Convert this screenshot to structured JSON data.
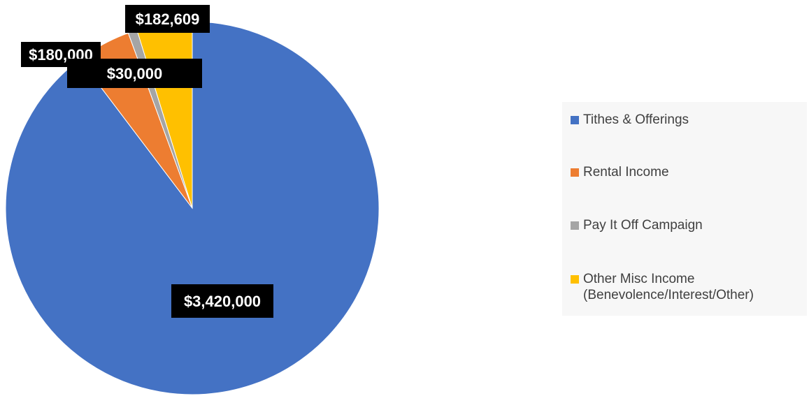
{
  "chart_data": {
    "type": "pie",
    "title": "",
    "categories": [
      "Tithes & Offerings",
      "Rental Income",
      "Pay It Off Campaign",
      "Other Misc Income\n(Benevolence/Interest/Other)"
    ],
    "values": [
      3420000,
      180000,
      30000,
      182609
    ],
    "data_labels": [
      "$3,420,000",
      "$180,000",
      "$30,000",
      "$182,609"
    ],
    "colors": [
      "#4472c4",
      "#ed7d31",
      "#a5a5a5",
      "#ffc000"
    ],
    "start_angle_deg": 0,
    "direction": "clockwise",
    "legend_placement": "right",
    "label_style": "black boxes, white bold text"
  }
}
